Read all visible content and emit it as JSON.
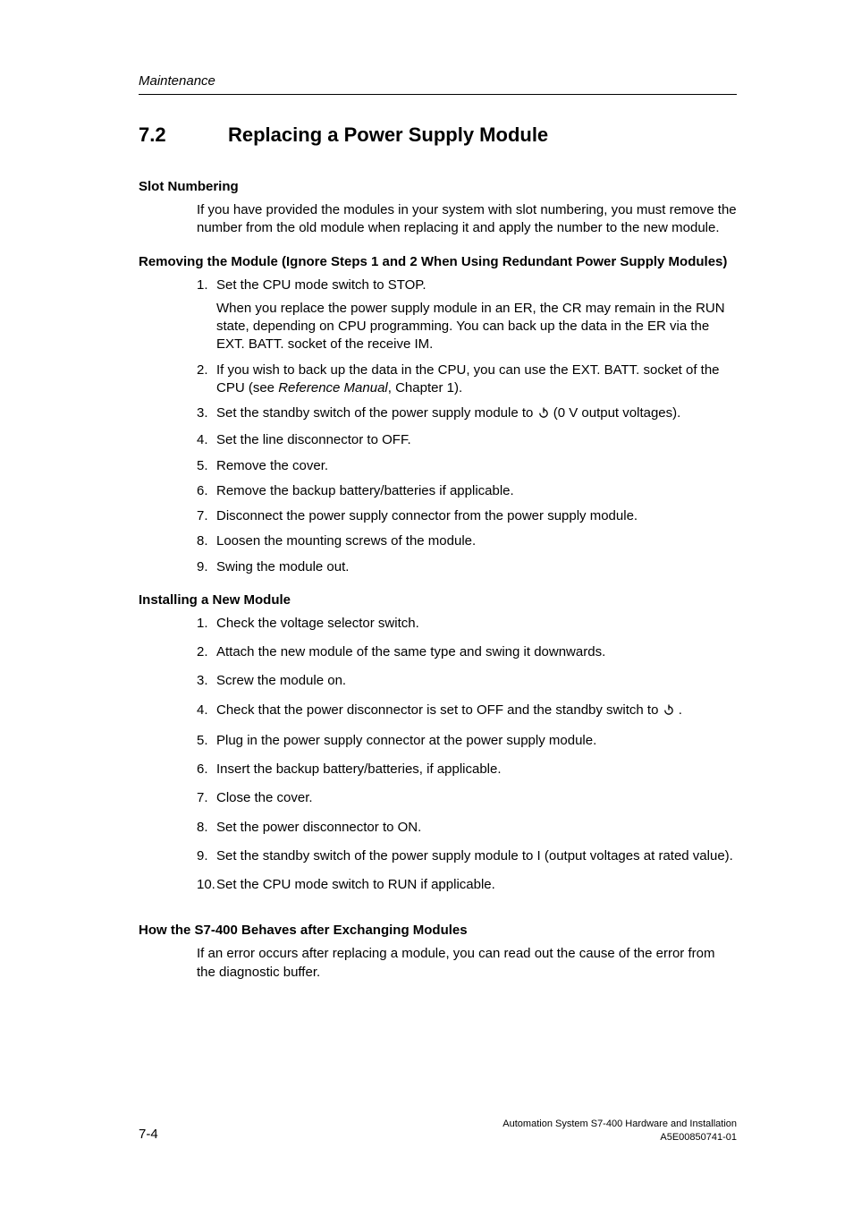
{
  "running_header": "Maintenance",
  "section": {
    "number": "7.2",
    "title": "Replacing a Power Supply Module"
  },
  "slot_numbering": {
    "heading": "Slot Numbering",
    "para": "If you have provided the modules in your system with slot numbering, you must remove the number from the old module when replacing it and apply the number to the new module."
  },
  "removing": {
    "heading": "Removing the Module (Ignore Steps 1 and 2 When Using Redundant Power Supply Modules)",
    "items": [
      {
        "num": "1.",
        "text": "Set the CPU mode switch to STOP.",
        "sub": "When you replace the power supply module in an ER, the CR may remain in the RUN state, depending on CPU programming. You can back up the data in the ER via the EXT. BATT. socket of the receive IM."
      },
      {
        "num": "2.",
        "text_pre": "If you wish to back up the data in the CPU, you can use the EXT. BATT. socket of the CPU (see ",
        "text_italic": "Reference Manual",
        "text_post": ", Chapter 1)."
      },
      {
        "num": "3.",
        "text_pre": "Set the standby switch of the power supply module to ",
        "has_icon": true,
        "text_post": "  (0 V output voltages)."
      },
      {
        "num": "4.",
        "text": "Set the line disconnector to OFF."
      },
      {
        "num": "5.",
        "text": "Remove the cover."
      },
      {
        "num": "6.",
        "text": "Remove the backup battery/batteries if applicable."
      },
      {
        "num": "7.",
        "text": "Disconnect the power supply connector from the power supply module."
      },
      {
        "num": "8.",
        "text": "Loosen the mounting screws of the module."
      },
      {
        "num": "9.",
        "text": "Swing the module out."
      }
    ]
  },
  "installing": {
    "heading": "Installing a New Module",
    "items": [
      {
        "num": "1.",
        "text": "Check the voltage selector switch."
      },
      {
        "num": "2.",
        "text": "Attach the new module of the same type and swing it downwards."
      },
      {
        "num": "3.",
        "text": "Screw the module on."
      },
      {
        "num": "4.",
        "text_pre": "Check that the power disconnector is set to OFF and the standby switch to ",
        "has_icon": true,
        "text_post": " ."
      },
      {
        "num": "5.",
        "text": "Plug in the power supply connector at the power supply module."
      },
      {
        "num": "6.",
        "text": "Insert the backup battery/batteries, if applicable."
      },
      {
        "num": "7.",
        "text": "Close the cover."
      },
      {
        "num": "8.",
        "text": "Set the power disconnector to ON."
      },
      {
        "num": "9.",
        "text": "Set the standby switch of the power supply module to I (output voltages at rated value)."
      },
      {
        "num": "10.",
        "text": "Set the CPU mode switch to RUN if applicable."
      }
    ]
  },
  "behaves": {
    "heading": "How the S7-400 Behaves after Exchanging Modules",
    "para": "If an error occurs after replacing a module, you can read out the cause of the error from the diagnostic buffer."
  },
  "footer": {
    "page_num": "7-4",
    "doc_title": "Automation System S7-400  Hardware and Installation",
    "doc_id": "A5E00850741-01"
  },
  "icon": {
    "stroke": "#000000",
    "size": 14
  }
}
